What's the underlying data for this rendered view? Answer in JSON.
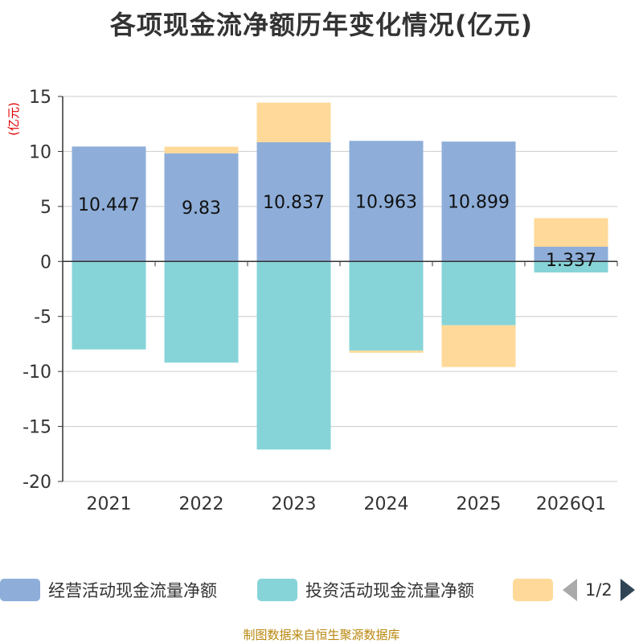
{
  "title": "各项现金流净额历年变化情况(亿元)",
  "footer": "制图数据来自恒生聚源数据库",
  "legend": {
    "items": [
      {
        "label": "经营活动现金流量净额",
        "color": "#8eaed9"
      },
      {
        "label": "投资活动现金流量净额",
        "color": "#86d4d8"
      },
      {
        "label": "",
        "color": "#ffd999"
      }
    ],
    "page": "1/2"
  },
  "chart_data": {
    "type": "bar",
    "stacked": true,
    "categories": [
      "2021",
      "2022",
      "2023",
      "2024",
      "2025",
      "2026Q1"
    ],
    "ylabel": "(亿元)",
    "ylim": [
      -20,
      15
    ],
    "yticks": [
      15,
      10,
      5,
      0,
      -5,
      -10,
      -15,
      -20
    ],
    "series": [
      {
        "name": "经营活动现金流量净额",
        "color": "#8eaed9",
        "values": [
          10.447,
          9.83,
          10.837,
          10.963,
          10.899,
          1.337
        ],
        "labels": [
          "10.447",
          "9.83",
          "10.837",
          "10.963",
          "10.899",
          "1.337"
        ]
      },
      {
        "name": "投资活动现金流量净额",
        "color": "#86d4d8",
        "values": [
          -8.0,
          -9.2,
          -17.1,
          -8.1,
          -5.8,
          -1.0
        ]
      },
      {
        "name": "",
        "color": "#ffd999",
        "values": [
          0.0,
          0.6,
          3.6,
          -0.2,
          -3.8,
          2.6
        ]
      }
    ]
  }
}
